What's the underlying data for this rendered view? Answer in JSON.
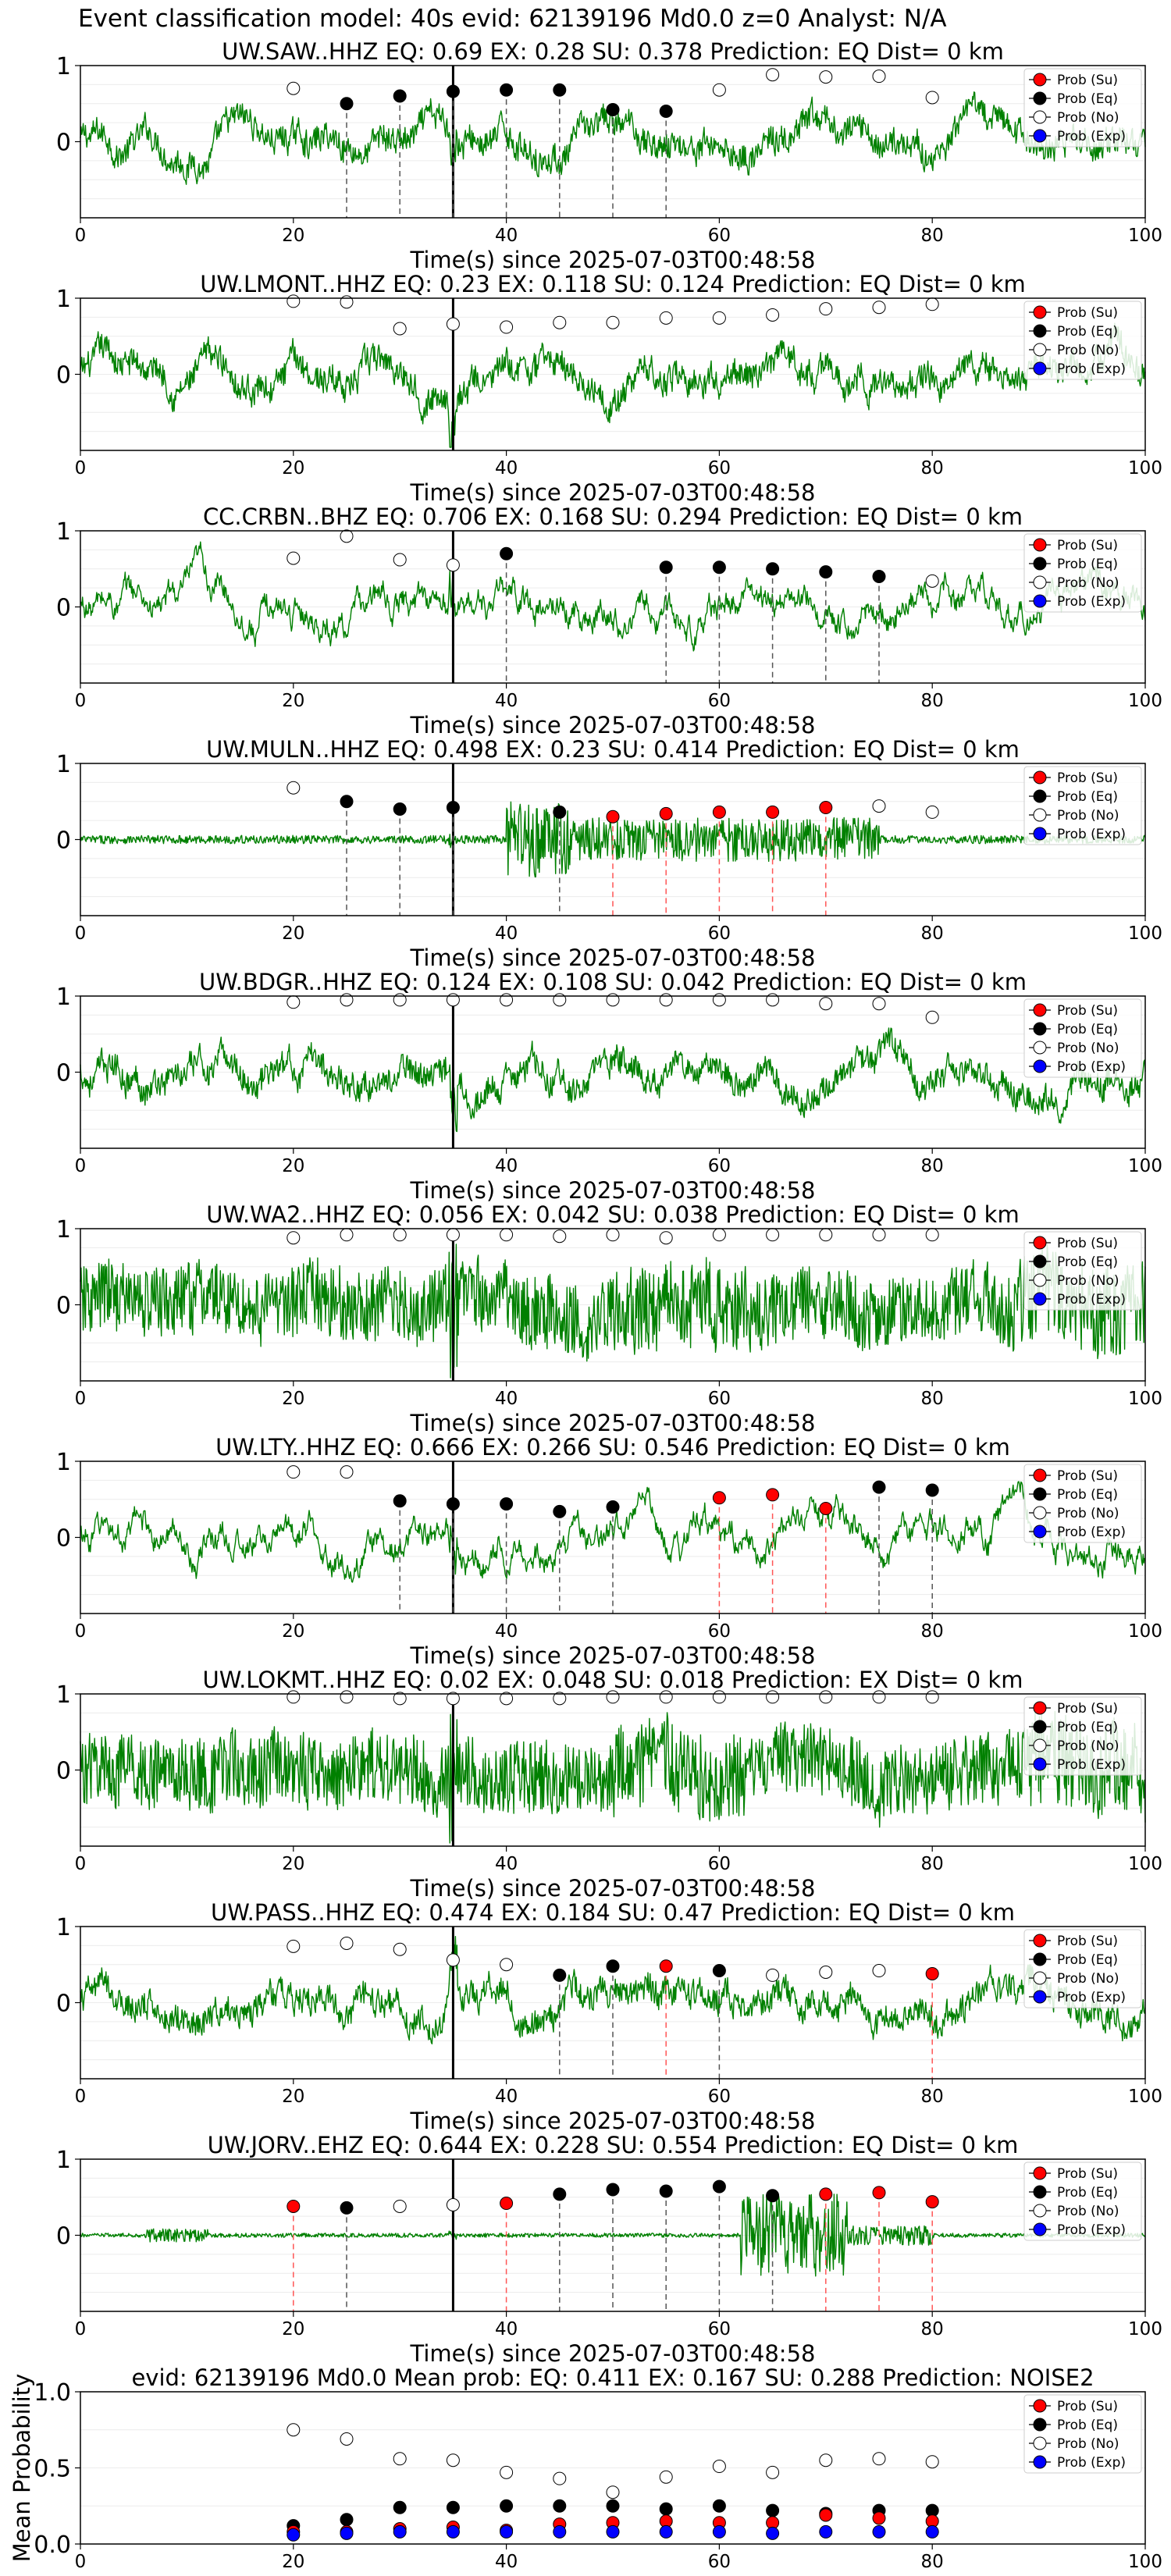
{
  "figure_title": "Event classification model: 40s evid: 62139196 Md0.0 z=0 Analyst: N/A",
  "legend_labels": [
    "Prob (Su)",
    "Prob (Eq)",
    "Prob (No)",
    "Prob (Exp)"
  ],
  "colors": {
    "su": "#ff0000",
    "eq": "#000000",
    "no": "#ffffff",
    "exp": "#0000ff",
    "trace": "#008000",
    "vline_eq": "#555555",
    "vline_su": "#ff5555"
  },
  "chart_data": [
    {
      "type": "line",
      "title": "UW.SAW..HHZ   EQ: 0.69  EX: 0.28  SU: 0.378   Prediction: EQ    Dist= 0 km",
      "xlabel": "Time(s) since 2025-07-03T00:48:58",
      "xlim": [
        0,
        100
      ],
      "ylim": [
        -1,
        1
      ],
      "x_ticks": [
        "0",
        "20",
        "40",
        "60",
        "80",
        "100"
      ],
      "y_ticks": [
        "1",
        "0"
      ],
      "pick_time": 35,
      "trace_style": "noisy",
      "points": [
        {
          "t": 20,
          "p": 0.7,
          "c": "no"
        },
        {
          "t": 25,
          "p": 0.5,
          "c": "eq"
        },
        {
          "t": 30,
          "p": 0.6,
          "c": "eq"
        },
        {
          "t": 35,
          "p": 0.66,
          "c": "eq"
        },
        {
          "t": 40,
          "p": 0.68,
          "c": "eq"
        },
        {
          "t": 45,
          "p": 0.68,
          "c": "eq"
        },
        {
          "t": 50,
          "p": 0.42,
          "c": "eq"
        },
        {
          "t": 55,
          "p": 0.4,
          "c": "eq"
        },
        {
          "t": 60,
          "p": 0.68,
          "c": "no"
        },
        {
          "t": 65,
          "p": 0.88,
          "c": "no"
        },
        {
          "t": 70,
          "p": 0.85,
          "c": "no"
        },
        {
          "t": 75,
          "p": 0.86,
          "c": "no"
        },
        {
          "t": 80,
          "p": 0.58,
          "c": "no"
        }
      ]
    },
    {
      "type": "line",
      "title": "UW.LMONT..HHZ   EQ: 0.23  EX: 0.118  SU: 0.124   Prediction: EQ    Dist= 0 km",
      "xlabel": "Time(s) since 2025-07-03T00:48:58",
      "xlim": [
        0,
        100
      ],
      "ylim": [
        -1,
        1
      ],
      "x_ticks": [
        "0",
        "20",
        "40",
        "60",
        "80",
        "100"
      ],
      "y_ticks": [
        "1",
        "0"
      ],
      "pick_time": 35,
      "trace_style": "noisy",
      "points": [
        {
          "t": 20,
          "p": 0.96,
          "c": "no"
        },
        {
          "t": 25,
          "p": 0.95,
          "c": "no"
        },
        {
          "t": 30,
          "p": 0.6,
          "c": "no"
        },
        {
          "t": 35,
          "p": 0.66,
          "c": "no"
        },
        {
          "t": 40,
          "p": 0.62,
          "c": "no"
        },
        {
          "t": 45,
          "p": 0.68,
          "c": "no"
        },
        {
          "t": 50,
          "p": 0.68,
          "c": "no"
        },
        {
          "t": 55,
          "p": 0.74,
          "c": "no"
        },
        {
          "t": 60,
          "p": 0.74,
          "c": "no"
        },
        {
          "t": 65,
          "p": 0.78,
          "c": "no"
        },
        {
          "t": 70,
          "p": 0.86,
          "c": "no"
        },
        {
          "t": 75,
          "p": 0.88,
          "c": "no"
        },
        {
          "t": 80,
          "p": 0.92,
          "c": "no"
        }
      ]
    },
    {
      "type": "line",
      "title": "CC.CRBN..BHZ   EQ: 0.706  EX: 0.168  SU: 0.294   Prediction: EQ    Dist= 0 km",
      "xlabel": "Time(s) since 2025-07-03T00:48:58",
      "xlim": [
        0,
        100
      ],
      "ylim": [
        -1,
        1
      ],
      "x_ticks": [
        "0",
        "20",
        "40",
        "60",
        "80",
        "100"
      ],
      "y_ticks": [
        "1",
        "0"
      ],
      "pick_time": 35,
      "trace_style": "smooth",
      "points": [
        {
          "t": 20,
          "p": 0.64,
          "c": "no"
        },
        {
          "t": 25,
          "p": 0.93,
          "c": "no"
        },
        {
          "t": 30,
          "p": 0.62,
          "c": "no"
        },
        {
          "t": 35,
          "p": 0.55,
          "c": "no"
        },
        {
          "t": 40,
          "p": 0.7,
          "c": "eq"
        },
        {
          "t": 55,
          "p": 0.52,
          "c": "eq"
        },
        {
          "t": 60,
          "p": 0.52,
          "c": "eq"
        },
        {
          "t": 65,
          "p": 0.5,
          "c": "eq"
        },
        {
          "t": 70,
          "p": 0.46,
          "c": "eq"
        },
        {
          "t": 75,
          "p": 0.4,
          "c": "eq"
        },
        {
          "t": 80,
          "p": 0.34,
          "c": "no"
        }
      ]
    },
    {
      "type": "line",
      "title": "UW.MULN..HHZ   EQ: 0.498  EX: 0.23  SU: 0.414   Prediction: EQ    Dist= 0 km",
      "xlabel": "Time(s) since 2025-07-03T00:48:58",
      "xlim": [
        0,
        100
      ],
      "ylim": [
        -1,
        1
      ],
      "x_ticks": [
        "0",
        "20",
        "40",
        "60",
        "80",
        "100"
      ],
      "y_ticks": [
        "1",
        "0"
      ],
      "pick_time": 35,
      "trace_style": "burst",
      "points": [
        {
          "t": 20,
          "p": 0.68,
          "c": "no"
        },
        {
          "t": 25,
          "p": 0.5,
          "c": "eq"
        },
        {
          "t": 30,
          "p": 0.4,
          "c": "eq"
        },
        {
          "t": 35,
          "p": 0.42,
          "c": "eq"
        },
        {
          "t": 45,
          "p": 0.36,
          "c": "eq"
        },
        {
          "t": 50,
          "p": 0.3,
          "c": "su"
        },
        {
          "t": 55,
          "p": 0.34,
          "c": "su"
        },
        {
          "t": 60,
          "p": 0.36,
          "c": "su"
        },
        {
          "t": 65,
          "p": 0.36,
          "c": "su"
        },
        {
          "t": 70,
          "p": 0.42,
          "c": "su"
        },
        {
          "t": 75,
          "p": 0.44,
          "c": "no"
        },
        {
          "t": 80,
          "p": 0.36,
          "c": "no"
        }
      ]
    },
    {
      "type": "line",
      "title": "UW.BDGR..HHZ   EQ: 0.124  EX: 0.108  SU: 0.042   Prediction: EQ    Dist= 0 km",
      "xlabel": "Time(s) since 2025-07-03T00:48:58",
      "xlim": [
        0,
        100
      ],
      "ylim": [
        -1,
        1
      ],
      "x_ticks": [
        "0",
        "20",
        "40",
        "60",
        "80",
        "100"
      ],
      "y_ticks": [
        "1",
        "0"
      ],
      "pick_time": 35,
      "trace_style": "noisy",
      "points": [
        {
          "t": 20,
          "p": 0.92,
          "c": "no"
        },
        {
          "t": 25,
          "p": 0.95,
          "c": "no"
        },
        {
          "t": 30,
          "p": 0.95,
          "c": "no"
        },
        {
          "t": 35,
          "p": 0.95,
          "c": "no"
        },
        {
          "t": 40,
          "p": 0.95,
          "c": "no"
        },
        {
          "t": 45,
          "p": 0.95,
          "c": "no"
        },
        {
          "t": 50,
          "p": 0.95,
          "c": "no"
        },
        {
          "t": 55,
          "p": 0.95,
          "c": "no"
        },
        {
          "t": 60,
          "p": 0.95,
          "c": "no"
        },
        {
          "t": 65,
          "p": 0.95,
          "c": "no"
        },
        {
          "t": 70,
          "p": 0.9,
          "c": "no"
        },
        {
          "t": 75,
          "p": 0.9,
          "c": "no"
        },
        {
          "t": 80,
          "p": 0.72,
          "c": "no"
        }
      ]
    },
    {
      "type": "line",
      "title": "UW.WA2..HHZ   EQ: 0.056  EX: 0.042  SU: 0.038   Prediction: EQ    Dist= 0 km",
      "xlabel": "Time(s) since 2025-07-03T00:48:58",
      "xlim": [
        0,
        100
      ],
      "ylim": [
        -1,
        1
      ],
      "x_ticks": [
        "0",
        "20",
        "40",
        "60",
        "80",
        "100"
      ],
      "y_ticks": [
        "1",
        "0"
      ],
      "pick_time": 35,
      "trace_style": "dense",
      "points": [
        {
          "t": 20,
          "p": 0.88,
          "c": "no"
        },
        {
          "t": 25,
          "p": 0.92,
          "c": "no"
        },
        {
          "t": 30,
          "p": 0.92,
          "c": "no"
        },
        {
          "t": 35,
          "p": 0.92,
          "c": "no"
        },
        {
          "t": 40,
          "p": 0.92,
          "c": "no"
        },
        {
          "t": 45,
          "p": 0.9,
          "c": "no"
        },
        {
          "t": 50,
          "p": 0.92,
          "c": "no"
        },
        {
          "t": 55,
          "p": 0.88,
          "c": "no"
        },
        {
          "t": 60,
          "p": 0.92,
          "c": "no"
        },
        {
          "t": 65,
          "p": 0.92,
          "c": "no"
        },
        {
          "t": 70,
          "p": 0.92,
          "c": "no"
        },
        {
          "t": 75,
          "p": 0.92,
          "c": "no"
        },
        {
          "t": 80,
          "p": 0.92,
          "c": "no"
        }
      ]
    },
    {
      "type": "line",
      "title": "UW.LTY..HHZ   EQ: 0.666  EX: 0.266  SU: 0.546   Prediction: EQ    Dist= 0 km",
      "xlabel": "Time(s) since 2025-07-03T00:48:58",
      "xlim": [
        0,
        100
      ],
      "ylim": [
        -1,
        1
      ],
      "x_ticks": [
        "0",
        "20",
        "40",
        "60",
        "80",
        "100"
      ],
      "y_ticks": [
        "1",
        "0"
      ],
      "pick_time": 35,
      "trace_style": "smooth",
      "points": [
        {
          "t": 20,
          "p": 0.86,
          "c": "no"
        },
        {
          "t": 25,
          "p": 0.86,
          "c": "no"
        },
        {
          "t": 30,
          "p": 0.48,
          "c": "eq"
        },
        {
          "t": 35,
          "p": 0.44,
          "c": "eq"
        },
        {
          "t": 40,
          "p": 0.44,
          "c": "eq"
        },
        {
          "t": 45,
          "p": 0.34,
          "c": "eq"
        },
        {
          "t": 50,
          "p": 0.4,
          "c": "eq"
        },
        {
          "t": 60,
          "p": 0.52,
          "c": "su"
        },
        {
          "t": 65,
          "p": 0.56,
          "c": "su"
        },
        {
          "t": 70,
          "p": 0.38,
          "c": "su"
        },
        {
          "t": 75,
          "p": 0.66,
          "c": "eq"
        },
        {
          "t": 80,
          "p": 0.62,
          "c": "eq"
        }
      ]
    },
    {
      "type": "line",
      "title": "UW.LOKMT..HHZ   EQ: 0.02  EX: 0.048  SU: 0.018   Prediction: EX    Dist= 0 km",
      "xlabel": "Time(s) since 2025-07-03T00:48:58",
      "xlim": [
        0,
        100
      ],
      "ylim": [
        -1,
        1
      ],
      "x_ticks": [
        "0",
        "20",
        "40",
        "60",
        "80",
        "100"
      ],
      "y_ticks": [
        "1",
        "0"
      ],
      "pick_time": 35,
      "trace_style": "dense",
      "points": [
        {
          "t": 20,
          "p": 0.96,
          "c": "no"
        },
        {
          "t": 25,
          "p": 0.96,
          "c": "no"
        },
        {
          "t": 30,
          "p": 0.94,
          "c": "no"
        },
        {
          "t": 35,
          "p": 0.94,
          "c": "no"
        },
        {
          "t": 40,
          "p": 0.94,
          "c": "no"
        },
        {
          "t": 45,
          "p": 0.94,
          "c": "no"
        },
        {
          "t": 50,
          "p": 0.96,
          "c": "no"
        },
        {
          "t": 55,
          "p": 0.96,
          "c": "no"
        },
        {
          "t": 60,
          "p": 0.96,
          "c": "no"
        },
        {
          "t": 65,
          "p": 0.96,
          "c": "no"
        },
        {
          "t": 70,
          "p": 0.96,
          "c": "no"
        },
        {
          "t": 75,
          "p": 0.96,
          "c": "no"
        },
        {
          "t": 80,
          "p": 0.96,
          "c": "no"
        }
      ]
    },
    {
      "type": "line",
      "title": "UW.PASS..HHZ   EQ: 0.474  EX: 0.184  SU: 0.47   Prediction: EQ    Dist= 0 km",
      "xlabel": "Time(s) since 2025-07-03T00:48:58",
      "xlim": [
        0,
        100
      ],
      "ylim": [
        -1,
        1
      ],
      "x_ticks": [
        "0",
        "20",
        "40",
        "60",
        "80",
        "100"
      ],
      "y_ticks": [
        "1",
        "0"
      ],
      "pick_time": 35,
      "trace_style": "noisy",
      "points": [
        {
          "t": 20,
          "p": 0.74,
          "c": "no"
        },
        {
          "t": 25,
          "p": 0.78,
          "c": "no"
        },
        {
          "t": 30,
          "p": 0.7,
          "c": "no"
        },
        {
          "t": 35,
          "p": 0.56,
          "c": "no"
        },
        {
          "t": 40,
          "p": 0.5,
          "c": "no"
        },
        {
          "t": 45,
          "p": 0.36,
          "c": "eq"
        },
        {
          "t": 50,
          "p": 0.48,
          "c": "eq"
        },
        {
          "t": 55,
          "p": 0.48,
          "c": "su"
        },
        {
          "t": 60,
          "p": 0.42,
          "c": "eq"
        },
        {
          "t": 65,
          "p": 0.36,
          "c": "no"
        },
        {
          "t": 70,
          "p": 0.4,
          "c": "no"
        },
        {
          "t": 75,
          "p": 0.42,
          "c": "no"
        },
        {
          "t": 80,
          "p": 0.38,
          "c": "su"
        }
      ]
    },
    {
      "type": "line",
      "title": "UW.JORV..EHZ   EQ: 0.644  EX: 0.228  SU: 0.554   Prediction: EQ    Dist= 0 km",
      "xlabel": "Time(s) since 2025-07-03T00:48:58",
      "xlim": [
        0,
        100
      ],
      "ylim": [
        -1,
        1
      ],
      "x_ticks": [
        "0",
        "20",
        "40",
        "60",
        "80",
        "100"
      ],
      "y_ticks": [
        "1",
        "0"
      ],
      "pick_time": 35,
      "trace_style": "quiet-burst",
      "points": [
        {
          "t": 20,
          "p": 0.38,
          "c": "su"
        },
        {
          "t": 25,
          "p": 0.36,
          "c": "eq"
        },
        {
          "t": 30,
          "p": 0.38,
          "c": "no"
        },
        {
          "t": 35,
          "p": 0.4,
          "c": "no"
        },
        {
          "t": 40,
          "p": 0.42,
          "c": "su"
        },
        {
          "t": 45,
          "p": 0.54,
          "c": "eq"
        },
        {
          "t": 50,
          "p": 0.6,
          "c": "eq"
        },
        {
          "t": 55,
          "p": 0.58,
          "c": "eq"
        },
        {
          "t": 60,
          "p": 0.64,
          "c": "eq"
        },
        {
          "t": 65,
          "p": 0.52,
          "c": "eq"
        },
        {
          "t": 70,
          "p": 0.54,
          "c": "su"
        },
        {
          "t": 75,
          "p": 0.56,
          "c": "su"
        },
        {
          "t": 80,
          "p": 0.44,
          "c": "su"
        }
      ]
    },
    {
      "type": "scatter",
      "title": "evid: 62139196  Md0.0   Mean prob:   EQ: 0.411  EX: 0.167  SU: 0.288   Prediction: NOISE2",
      "ylabel": "Mean Probability",
      "xlim": [
        0,
        100
      ],
      "ylim": [
        0,
        1
      ],
      "x_ticks": [
        "0",
        "20",
        "40",
        "60",
        "80",
        "100"
      ],
      "y_ticks": [
        "1.0",
        "0.5",
        "0.0"
      ],
      "series": [
        {
          "name": "Prob (No)",
          "key": "no",
          "x": [
            20,
            25,
            30,
            35,
            40,
            45,
            50,
            55,
            60,
            65,
            70,
            75,
            80
          ],
          "y": [
            0.75,
            0.69,
            0.56,
            0.55,
            0.47,
            0.43,
            0.34,
            0.44,
            0.51,
            0.47,
            0.55,
            0.56,
            0.54
          ]
        },
        {
          "name": "Prob (Eq)",
          "key": "eq",
          "x": [
            20,
            25,
            30,
            35,
            40,
            45,
            50,
            55,
            60,
            65,
            70,
            75,
            80
          ],
          "y": [
            0.12,
            0.16,
            0.24,
            0.24,
            0.25,
            0.25,
            0.25,
            0.23,
            0.25,
            0.22,
            0.2,
            0.22,
            0.22
          ]
        },
        {
          "name": "Prob (Su)",
          "key": "su",
          "x": [
            20,
            25,
            30,
            35,
            40,
            45,
            50,
            55,
            60,
            65,
            70,
            75,
            80
          ],
          "y": [
            0.08,
            0.08,
            0.1,
            0.11,
            0.09,
            0.13,
            0.14,
            0.15,
            0.14,
            0.14,
            0.19,
            0.17,
            0.15
          ]
        },
        {
          "name": "Prob (Exp)",
          "key": "exp",
          "x": [
            20,
            25,
            30,
            35,
            40,
            45,
            50,
            55,
            60,
            65,
            70,
            75,
            80
          ],
          "y": [
            0.06,
            0.07,
            0.08,
            0.08,
            0.08,
            0.08,
            0.08,
            0.08,
            0.08,
            0.07,
            0.08,
            0.08,
            0.08
          ]
        }
      ]
    }
  ]
}
